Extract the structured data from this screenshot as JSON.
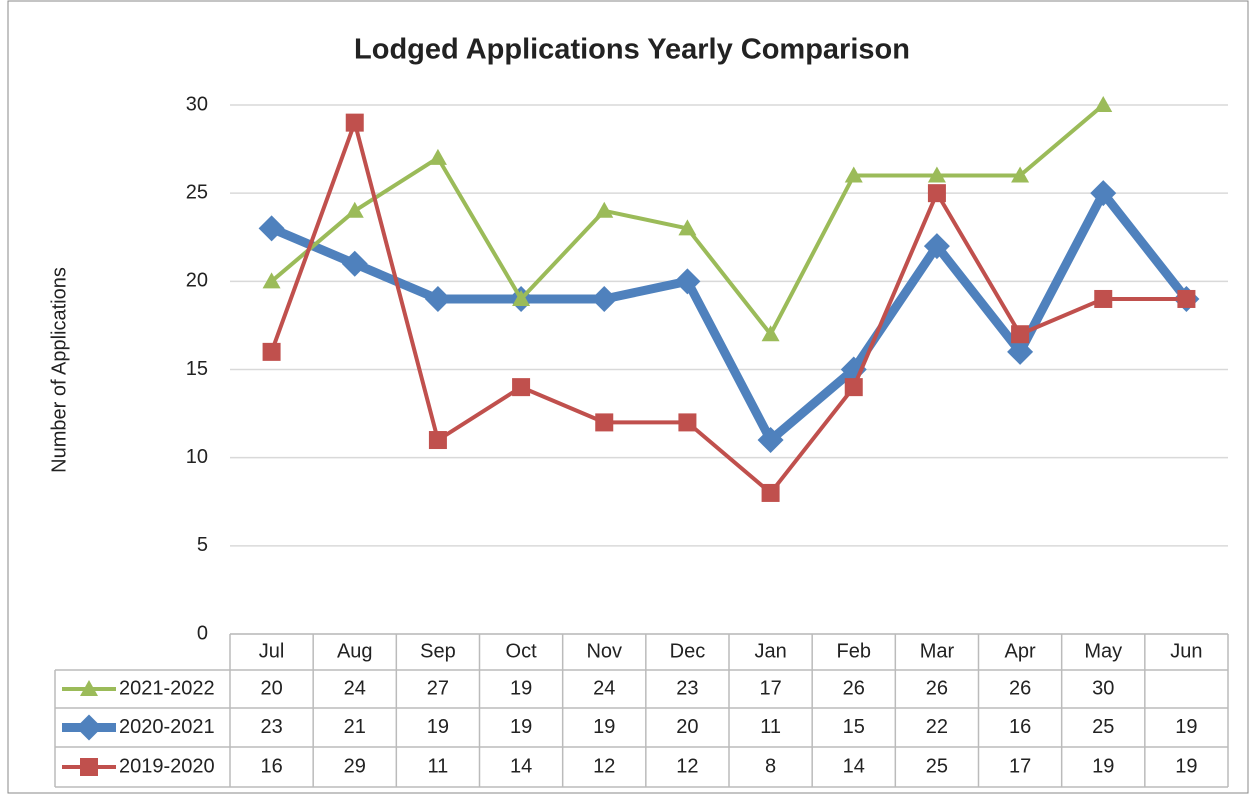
{
  "chart_data": {
    "type": "line",
    "title": "Lodged Applications Yearly Comparison",
    "y_label": "Number of Applications",
    "categories": [
      "Jul",
      "Aug",
      "Sep",
      "Oct",
      "Nov",
      "Dec",
      "Jan",
      "Feb",
      "Mar",
      "Apr",
      "May",
      "Jun"
    ],
    "series": [
      {
        "name": "2021-2022",
        "color": "#9bbb59",
        "marker": "triangle",
        "values": [
          20,
          24,
          27,
          19,
          24,
          23,
          17,
          26,
          26,
          26,
          30,
          null
        ]
      },
      {
        "name": "2020-2021",
        "color": "#4f81bd",
        "marker": "diamond",
        "values": [
          23,
          21,
          19,
          19,
          19,
          20,
          11,
          15,
          22,
          16,
          25,
          19
        ]
      },
      {
        "name": "2019-2020",
        "color": "#c0504d",
        "marker": "square",
        "values": [
          16,
          29,
          11,
          14,
          12,
          12,
          8,
          14,
          25,
          17,
          19,
          19
        ]
      }
    ],
    "ylim": [
      0,
      30
    ],
    "yticks": [
      0,
      5,
      10,
      15,
      20,
      25,
      30
    ],
    "grid": true,
    "data_table": true
  }
}
